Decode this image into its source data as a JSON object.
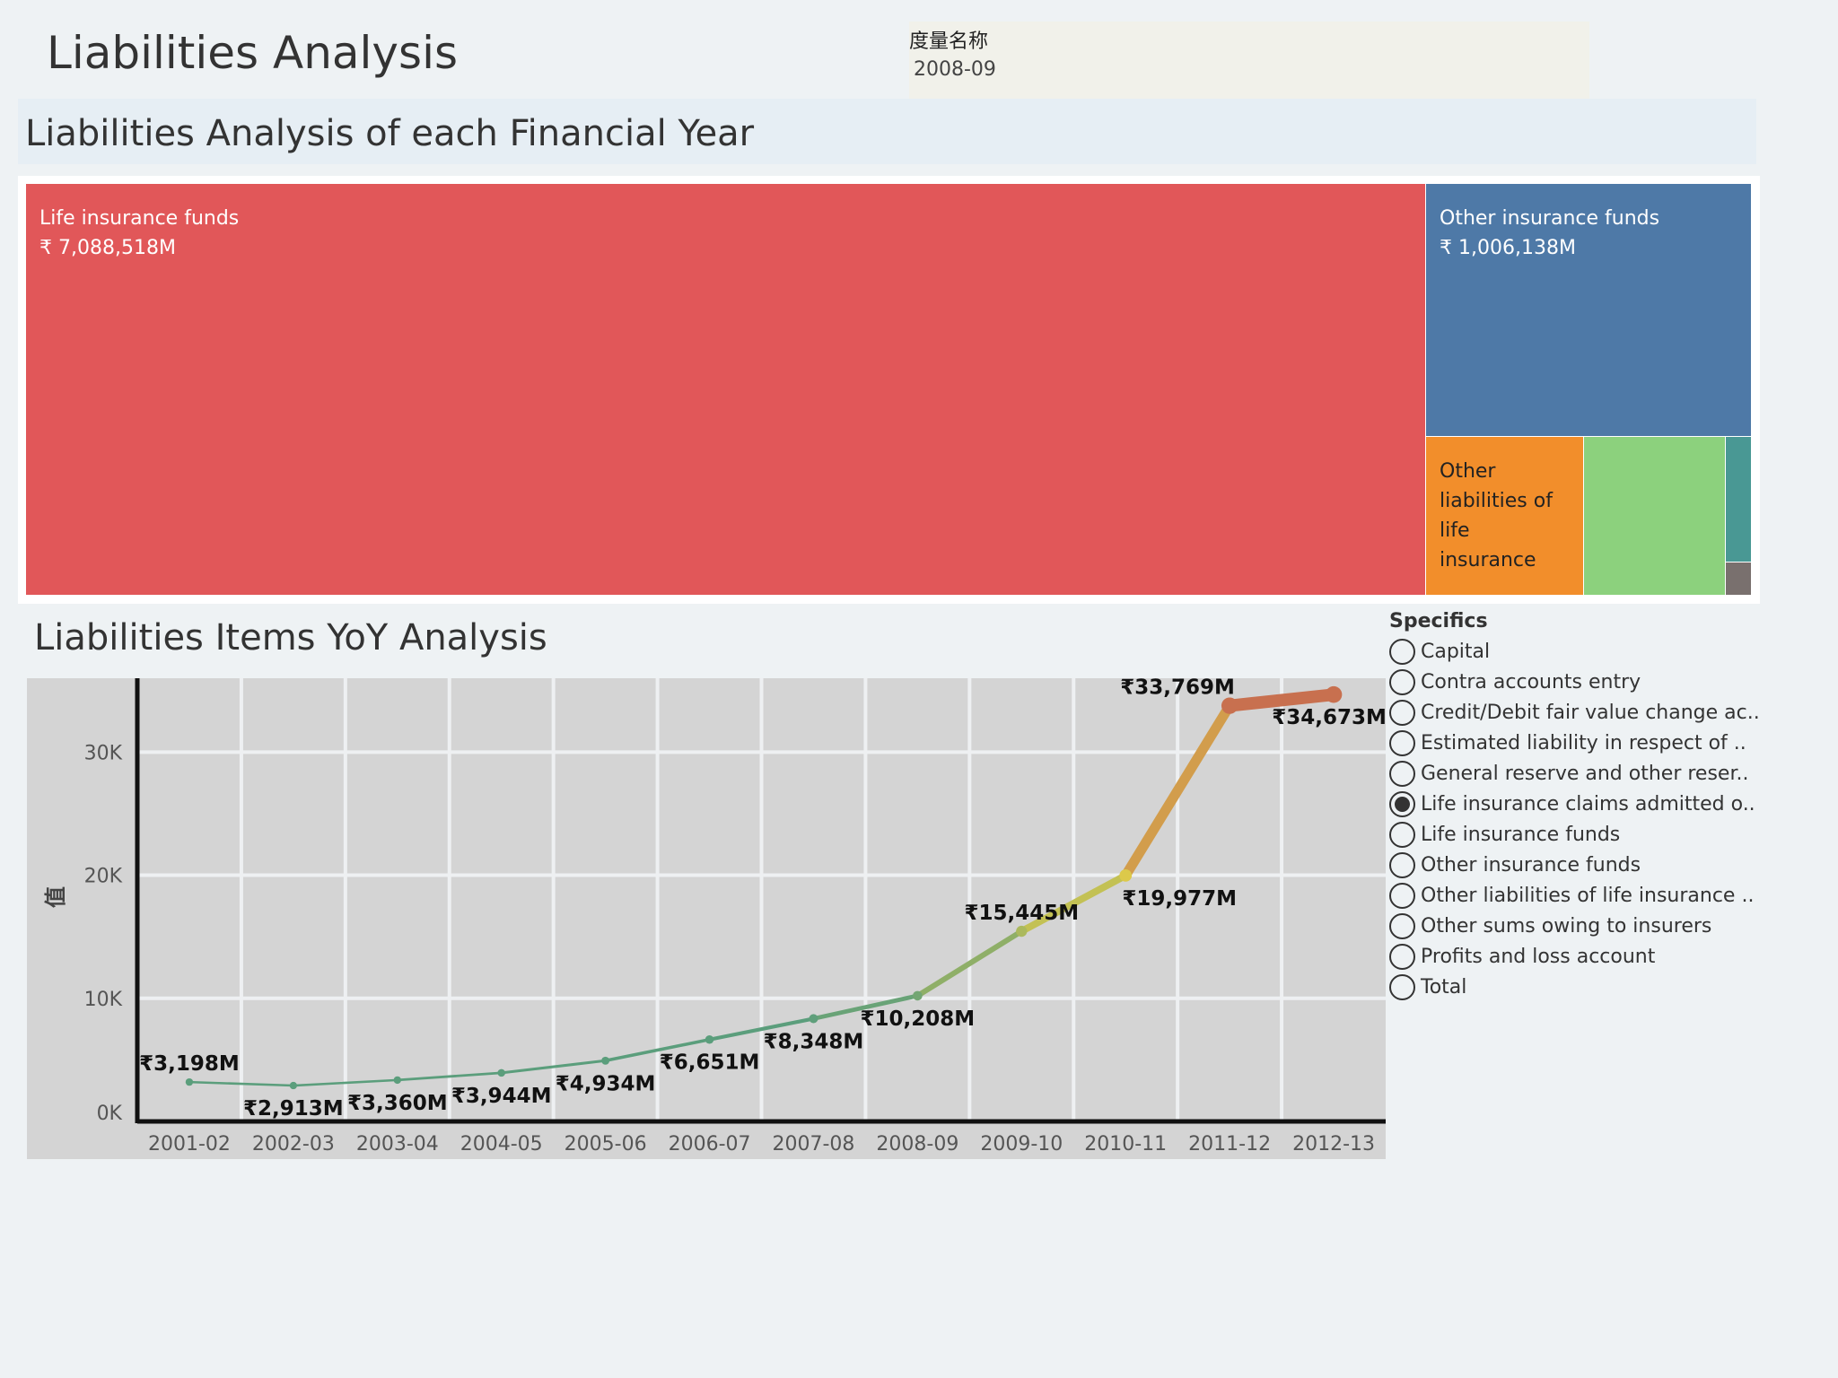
{
  "dashboard": {
    "title": "Liabilities Analysis",
    "filter": {
      "label": "度量名称",
      "value": "2008-09"
    }
  },
  "treemap": {
    "title": "Liabilities Analysis of each Financial Year",
    "tiles": [
      {
        "name": "Life insurance funds",
        "value_label": "₹ 7,088,518M",
        "color": "#e15759"
      },
      {
        "name": "Other insurance funds",
        "value_label": "₹ 1,006,138M",
        "color": "#4e79a7"
      },
      {
        "name_lines": [
          "Other",
          "liabilities of",
          "life",
          "insurance"
        ],
        "color": "#f28e2b"
      },
      {
        "color": "#8cd17d"
      },
      {
        "color": "#499894"
      },
      {
        "color": "#79706e"
      }
    ]
  },
  "line_section": {
    "title": "Liabilities Items YoY Analysis",
    "legend": {
      "title": "Specifics",
      "items": [
        {
          "label": "Capital",
          "selected": false
        },
        {
          "label": "Contra accounts entry",
          "selected": false
        },
        {
          "label": "Credit/Debit fair value change ac..",
          "selected": false
        },
        {
          "label": "Estimated liability in respect of ..",
          "selected": false
        },
        {
          "label": "General reserve and other reser..",
          "selected": false
        },
        {
          "label": "Life insurance claims admitted o..",
          "selected": true
        },
        {
          "label": "Life insurance funds",
          "selected": false
        },
        {
          "label": "Other insurance funds",
          "selected": false
        },
        {
          "label": "Other liabilities of life insurance ..",
          "selected": false
        },
        {
          "label": "Other sums owing to insurers",
          "selected": false
        },
        {
          "label": "Profits and loss account",
          "selected": false
        },
        {
          "label": "Total",
          "selected": false
        }
      ]
    }
  },
  "chart_data": {
    "type": "line",
    "ylabel": "值",
    "ylim": [
      0,
      36000
    ],
    "yticks": [
      0,
      10000,
      20000,
      30000
    ],
    "ytick_labels": [
      "0K",
      "10K",
      "20K",
      "30K"
    ],
    "grid": true,
    "x": [
      "2001-02",
      "2002-03",
      "2003-04",
      "2004-05",
      "2005-06",
      "2006-07",
      "2007-08",
      "2008-09",
      "2009-10",
      "2010-11",
      "2011-12",
      "2012-13"
    ],
    "values": [
      3198,
      2913,
      3360,
      3944,
      4934,
      6651,
      8348,
      10208,
      15445,
      19977,
      33769,
      34673
    ],
    "data_labels": [
      "₹3,198M",
      "₹2,913M",
      "₹3,360M",
      "₹3,944M",
      "₹4,934M",
      "₹6,651M",
      "₹8,348M",
      "₹10,208M",
      "₹15,445M",
      "₹19,977M",
      "₹33,769M",
      "₹34,673M"
    ],
    "colors": {
      "low": "#5b9e7c",
      "mid": "#dcc94a",
      "high": "#c8704f"
    }
  }
}
